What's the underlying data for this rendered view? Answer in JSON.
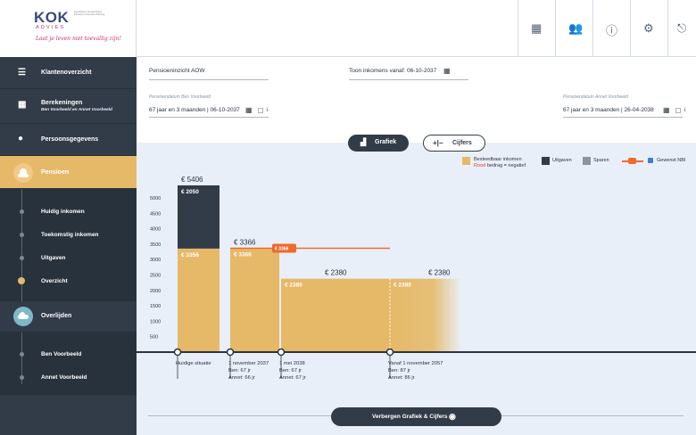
{
  "brand": {
    "logo_text": "KOK",
    "logo_sub": "ADVIES",
    "tagline": "Laat je leven niet toevallig zijn!",
    "small_text": "Hypotheken Verzekeringen Pensioen Financiële Planning"
  },
  "sidebar": {
    "items": [
      {
        "label": "Klantenoverzicht",
        "icon": "list-icon"
      },
      {
        "label": "Berekeningen",
        "sub": "Ben Voorbeeld en Annet Voorbeeld",
        "icon": "calculator-icon"
      },
      {
        "label": "Persoonsgegevens",
        "icon": "person-icon"
      },
      {
        "label": "Pensioen",
        "icon": "sun-cloud-icon"
      },
      {
        "label": "Overlijden",
        "icon": "cloud-icon"
      }
    ],
    "pensioen_sub": [
      "Huidig inkomen",
      "Toekomstig inkomen",
      "Uitgaven",
      "Overzicht"
    ],
    "overlijden_sub": [
      "Ben Voorbeeld",
      "Annet Voorbeeld"
    ]
  },
  "topbar": {
    "icons": [
      "calculator-icon",
      "users-icon",
      "help-icon",
      "settings-icon",
      "logout-icon"
    ]
  },
  "filters": {
    "select_value": "Pensioeninzicht AOW",
    "toon_label": "Toon inkomens vanaf: 06-10-2037",
    "ben_label": "Pensioendatum Ben Voorbeeld",
    "ben_value": "67 jaar en 3 maanden | 06-10-2037",
    "annet_label": "Pensioendatum Annet Voorbeeld",
    "annet_value": "67 jaar en 3 maanden | 26-04-2038",
    "info": "i"
  },
  "toggle": {
    "grafiek": "Grafiek",
    "cijfers": "Cijfers"
  },
  "legend": {
    "besteedbaar": "Besteedbaar inkomen",
    "rood": "Rood",
    "rood_rest": "bedrag = negatief",
    "uitgaven": "Uitgaven",
    "sparen": "Sparen",
    "gewenst": "Gewenst NBI"
  },
  "colors": {
    "besteedbaar": "#e5b968",
    "uitgaven": "#323c48",
    "sparen": "#8e949c",
    "gewenst": "#ee6a2e",
    "sidebar": "#323c48"
  },
  "chart_data": {
    "type": "bar",
    "ylim": [
      0,
      5500
    ],
    "yticks": [
      500,
      1000,
      1500,
      2000,
      2500,
      3000,
      3500,
      4000,
      4500,
      5000
    ],
    "categories": [
      {
        "label": "Huidige situatie",
        "lines": []
      },
      {
        "label": "1 november 2037",
        "lines": [
          "Ben: 67 jr",
          "Annet: 66 jr"
        ]
      },
      {
        "label": "1 mei 2038",
        "lines": [
          "Ben: 67 jr",
          "Annet: 67 jr"
        ]
      },
      {
        "label": "Vanaf 1 november 2057",
        "lines": [
          "Ben: 87 jr",
          "Annet: 86 jr"
        ]
      }
    ],
    "series": [
      {
        "name": "Besteedbaar inkomen",
        "values": [
          3356,
          3366,
          2380,
          2380
        ]
      },
      {
        "name": "Uitgaven",
        "values": [
          2050,
          0,
          0,
          0
        ]
      }
    ],
    "totals": [
      "€ 5406",
      "€ 3366",
      "€ 2380",
      "€ 2380"
    ],
    "inner_labels": {
      "besteedbaar": [
        "€ 3356",
        "€ 3366",
        "€ 2380",
        "€ 2380"
      ],
      "uitgaven": [
        "€ 2050",
        "",
        "",
        ""
      ]
    },
    "gewenst_nbi": 3366,
    "gewenst_label": "€ 3366"
  },
  "bottom_button": "Verbergen Grafiek & Cijfers"
}
